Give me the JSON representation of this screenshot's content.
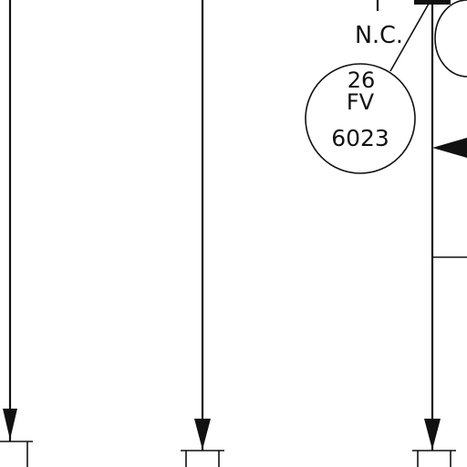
{
  "valve_note": "N.C.",
  "instrument": {
    "loop_number": "26",
    "function_code": "FV",
    "tag_number": "6023"
  },
  "colors": {
    "line": "#111111",
    "background": "#ffffff"
  }
}
